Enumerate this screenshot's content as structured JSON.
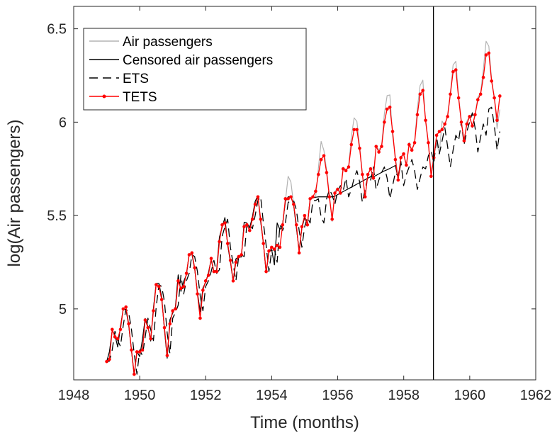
{
  "chart_data": {
    "type": "line",
    "xlabel": "Time (months)",
    "ylabel": "log(Air passengers)",
    "xlim": [
      1948,
      1962
    ],
    "ylim": [
      4.62,
      6.62
    ],
    "xticks": [
      1948,
      1950,
      1952,
      1954,
      1956,
      1958,
      1960,
      1962
    ],
    "xtick_labels": [
      "1948",
      "1950",
      "1952",
      "1954",
      "1956",
      "1958",
      "1960",
      "1962"
    ],
    "yticks": [
      5,
      5.5,
      6,
      6.5
    ],
    "ytick_labels": [
      "5",
      "5.5",
      "6",
      "6.5"
    ],
    "vline_x": 1958.9,
    "legend_position": "top-left",
    "x_start": 1949.0,
    "x_step": 0.0833,
    "series": [
      {
        "name": "Air passengers",
        "style": "solid",
        "color": "#b3b3b3",
        "values": [
          4.718,
          4.771,
          4.883,
          4.86,
          4.796,
          4.905,
          4.997,
          4.997,
          4.913,
          4.779,
          4.644,
          4.771,
          4.745,
          4.836,
          4.949,
          4.905,
          4.828,
          5.004,
          5.136,
          5.136,
          5.063,
          4.89,
          4.736,
          4.942,
          4.977,
          5.011,
          5.182,
          5.094,
          5.147,
          5.182,
          5.293,
          5.293,
          5.215,
          5.088,
          4.984,
          5.112,
          5.142,
          5.193,
          5.263,
          5.199,
          5.209,
          5.384,
          5.438,
          5.489,
          5.342,
          5.252,
          5.147,
          5.268,
          5.278,
          5.278,
          5.464,
          5.46,
          5.434,
          5.493,
          5.576,
          5.606,
          5.468,
          5.352,
          5.193,
          5.303,
          5.318,
          5.236,
          5.46,
          5.425,
          5.455,
          5.576,
          5.71,
          5.68,
          5.557,
          5.434,
          5.313,
          5.434,
          5.489,
          5.451,
          5.587,
          5.595,
          5.598,
          5.753,
          5.897,
          5.849,
          5.743,
          5.613,
          5.468,
          5.628,
          5.649,
          5.624,
          5.759,
          5.746,
          5.762,
          5.924,
          6.023,
          6.004,
          5.872,
          5.724,
          5.602,
          5.724,
          5.753,
          5.707,
          5.875,
          5.852,
          5.872,
          6.045,
          6.142,
          6.146,
          5.924,
          5.82,
          5.697,
          5.817,
          5.829,
          5.762,
          5.892,
          5.852,
          5.894,
          6.075,
          6.196,
          6.225,
          6.001,
          5.883,
          5.737,
          5.82,
          5.886,
          5.835,
          6.006,
          5.981,
          6.04,
          6.157,
          6.306,
          6.326,
          6.138,
          6.009,
          5.892,
          6.004,
          6.033,
          5.969,
          6.038,
          6.133,
          6.157,
          6.282,
          6.433,
          6.407,
          6.23,
          6.133,
          5.966,
          6.068
        ]
      },
      {
        "name": "Censored air passengers",
        "style": "solid",
        "color": "#000000",
        "values": [
          4.718,
          4.771,
          4.883,
          4.86,
          4.796,
          4.905,
          4.997,
          4.997,
          4.913,
          4.779,
          4.644,
          4.771,
          4.745,
          4.836,
          4.949,
          4.905,
          4.828,
          5.004,
          5.136,
          5.136,
          5.063,
          4.89,
          4.736,
          4.942,
          4.977,
          5.011,
          5.182,
          5.094,
          5.147,
          5.182,
          5.293,
          5.293,
          5.215,
          5.088,
          4.984,
          5.112,
          5.142,
          5.193,
          5.263,
          5.199,
          5.209,
          5.384,
          5.438,
          5.489,
          5.342,
          5.252,
          5.147,
          5.268,
          5.278,
          5.278,
          5.464,
          5.46,
          5.434,
          5.493,
          5.576,
          5.606,
          5.468,
          5.352,
          5.193,
          5.303,
          5.318,
          5.236,
          5.46,
          5.425,
          5.455,
          5.576,
          5.6,
          5.6,
          5.557,
          5.434,
          5.313,
          5.434,
          5.489,
          5.451,
          5.587,
          5.595,
          5.598,
          5.6,
          5.6,
          5.6,
          5.6,
          5.6,
          5.6,
          5.603,
          5.612,
          5.62,
          5.628,
          5.636,
          5.644,
          5.652,
          5.66,
          5.668,
          5.676,
          5.684,
          5.692,
          5.7,
          5.708,
          5.707,
          5.715,
          5.723,
          5.731,
          5.739,
          5.745,
          5.752,
          5.76,
          5.768,
          5.697,
          5.78
        ]
      },
      {
        "name": "ETS",
        "style": "dashed",
        "color": "#000000",
        "values": [
          4.718,
          4.72,
          4.78,
          4.88,
          4.83,
          4.8,
          4.91,
          5.0,
          4.98,
          4.89,
          4.76,
          4.65,
          4.78,
          4.75,
          4.85,
          4.95,
          4.89,
          4.83,
          5.01,
          5.13,
          5.12,
          5.04,
          4.87,
          4.76,
          4.95,
          4.98,
          5.02,
          5.18,
          5.08,
          5.15,
          5.19,
          5.29,
          5.28,
          5.2,
          5.07,
          4.99,
          5.12,
          5.15,
          5.2,
          5.26,
          5.19,
          5.21,
          5.39,
          5.44,
          5.48,
          5.33,
          5.24,
          5.15,
          5.28,
          5.29,
          5.28,
          5.46,
          5.45,
          5.43,
          5.5,
          5.58,
          5.6,
          5.46,
          5.34,
          5.2,
          5.31,
          5.32,
          5.25,
          5.45,
          5.42,
          5.46,
          5.57,
          5.58,
          5.58,
          5.53,
          5.42,
          5.33,
          5.44,
          5.49,
          5.46,
          5.58,
          5.58,
          5.59,
          5.49,
          5.46,
          5.59,
          5.64,
          5.61,
          5.56,
          5.63,
          5.66,
          5.63,
          5.7,
          5.6,
          5.64,
          5.7,
          5.74,
          5.68,
          5.57,
          5.64,
          5.71,
          5.69,
          5.76,
          5.64,
          5.69,
          5.73,
          5.76,
          5.7,
          5.59,
          5.66,
          5.73,
          5.71,
          5.79,
          5.66,
          5.72,
          5.76,
          5.8,
          5.74,
          5.64,
          5.7,
          5.76,
          5.75,
          5.82,
          5.85,
          5.78,
          5.92,
          5.83,
          5.9,
          5.97,
          5.87,
          5.76,
          5.85,
          5.93,
          5.9,
          6.0,
          5.88,
          5.95,
          6.0,
          6.05,
          5.97,
          5.84,
          5.92,
          5.99,
          5.93,
          6.07,
          6.08,
          5.98,
          5.85,
          5.95
        ]
      },
      {
        "name": "TETS",
        "style": "solid-marker",
        "color": "#ff0000",
        "values": [
          4.718,
          4.73,
          4.89,
          4.85,
          4.84,
          4.89,
          5.0,
          5.01,
          4.92,
          4.78,
          4.65,
          4.77,
          4.77,
          4.78,
          4.94,
          4.9,
          4.84,
          4.99,
          5.13,
          5.12,
          5.05,
          4.9,
          4.75,
          4.92,
          4.99,
          5.0,
          5.15,
          5.11,
          5.12,
          5.19,
          5.29,
          5.3,
          5.22,
          5.08,
          4.95,
          5.1,
          5.15,
          5.18,
          5.27,
          5.2,
          5.2,
          5.36,
          5.45,
          5.46,
          5.35,
          5.26,
          5.15,
          5.25,
          5.28,
          5.29,
          5.44,
          5.45,
          5.42,
          5.48,
          5.56,
          5.6,
          5.48,
          5.35,
          5.2,
          5.31,
          5.33,
          5.32,
          5.34,
          5.33,
          5.45,
          5.59,
          5.59,
          5.6,
          5.56,
          5.45,
          5.3,
          5.44,
          5.5,
          5.45,
          5.59,
          5.6,
          5.63,
          5.72,
          5.8,
          5.82,
          5.73,
          5.6,
          5.48,
          5.62,
          5.64,
          5.62,
          5.75,
          5.74,
          5.76,
          5.88,
          5.96,
          5.96,
          5.86,
          5.72,
          5.6,
          5.72,
          5.75,
          5.7,
          5.87,
          5.84,
          5.87,
          6.0,
          6.07,
          6.08,
          5.95,
          5.8,
          5.69,
          5.81,
          5.83,
          5.77,
          5.88,
          5.85,
          5.89,
          6.04,
          6.15,
          6.17,
          6.01,
          5.89,
          5.71,
          5.81,
          5.93,
          5.95,
          5.96,
          5.99,
          6.03,
          6.15,
          6.27,
          6.28,
          6.13,
          6.0,
          5.9,
          5.99,
          6.03,
          5.98,
          6.04,
          6.12,
          6.15,
          6.24,
          6.36,
          6.37,
          6.22,
          6.13,
          6.01,
          6.14
        ]
      }
    ]
  },
  "colors": {
    "background": "#ffffff",
    "axes": "#262626",
    "air_passengers": "#b3b3b3",
    "censored": "#000000",
    "ets": "#000000",
    "tets": "#ff0000"
  }
}
